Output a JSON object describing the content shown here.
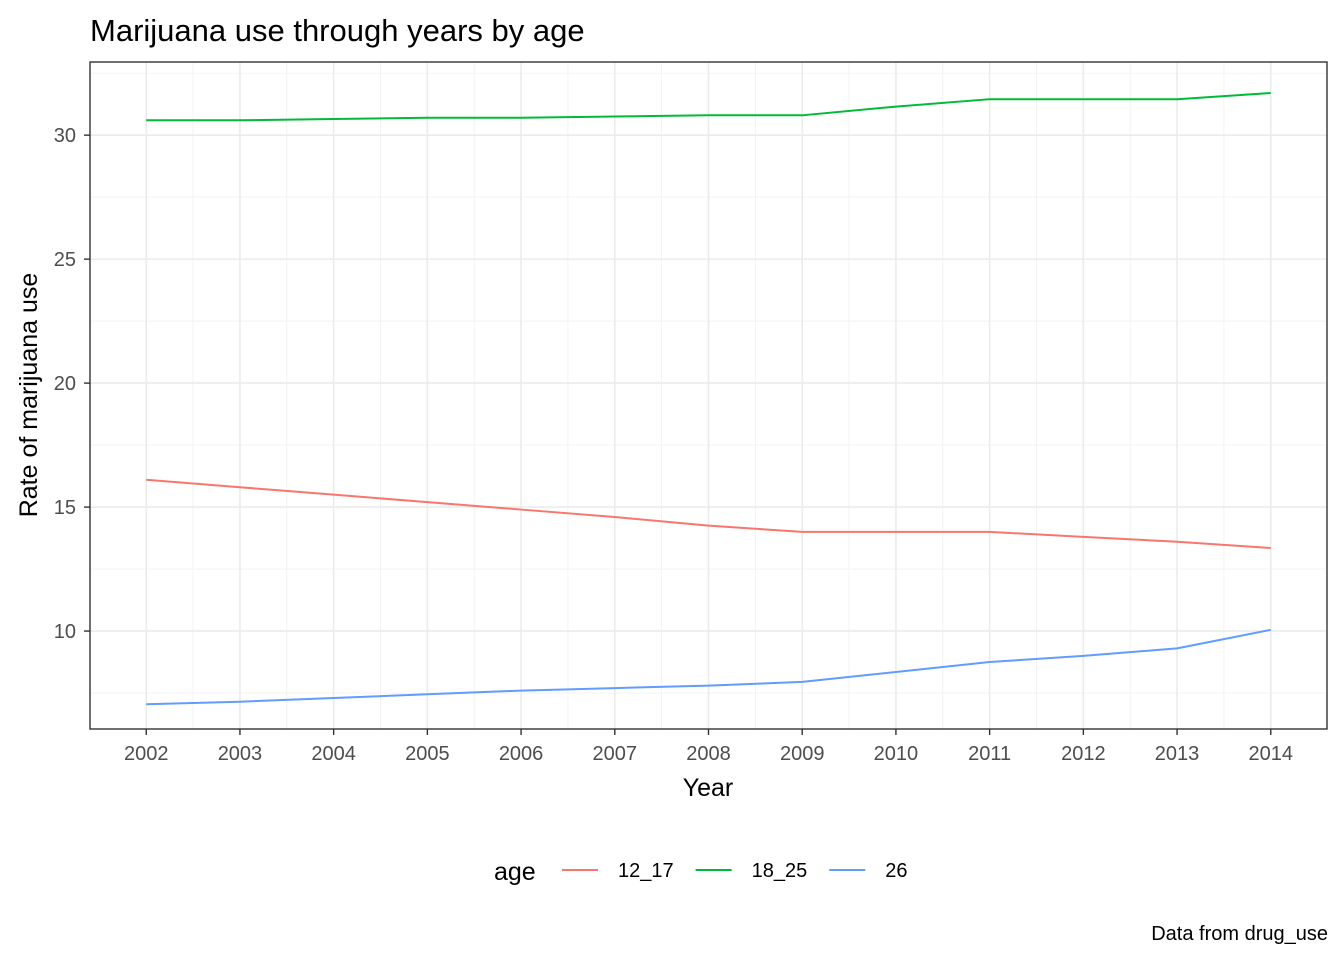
{
  "chart_data": {
    "type": "line",
    "title": "Marijuana use through years by age",
    "xlabel": "Year",
    "ylabel": "Rate of marijuana use",
    "caption": "Data from drug_use",
    "x": [
      2002,
      2003,
      2004,
      2005,
      2006,
      2007,
      2008,
      2009,
      2010,
      2011,
      2012,
      2013,
      2014
    ],
    "x_tick_labels": [
      "2002",
      "2003",
      "2004",
      "2005",
      "2006",
      "2007",
      "2008",
      "2009",
      "2010",
      "2011",
      "2012",
      "2013",
      "2014"
    ],
    "y_ticks": [
      10,
      15,
      20,
      25,
      30
    ],
    "y_tick_labels": [
      "10",
      "15",
      "20",
      "25",
      "30"
    ],
    "xlim": [
      2001.4,
      2014.6
    ],
    "ylim": [
      6.05,
      32.95
    ],
    "grid": true,
    "legend": {
      "title": "age",
      "position": "bottom"
    },
    "series": [
      {
        "name": "12_17",
        "color": "#F8766D",
        "values": [
          16.1,
          15.8,
          15.5,
          15.2,
          14.9,
          14.6,
          14.25,
          14.0,
          14.0,
          14.0,
          13.8,
          13.6,
          13.35
        ]
      },
      {
        "name": "18_25",
        "color": "#00BA38",
        "values": [
          30.6,
          30.6,
          30.65,
          30.7,
          30.7,
          30.75,
          30.8,
          30.8,
          31.15,
          31.45,
          31.45,
          31.45,
          31.7
        ]
      },
      {
        "name": "26",
        "color": "#619CFF",
        "values": [
          7.05,
          7.15,
          7.3,
          7.45,
          7.6,
          7.7,
          7.8,
          7.95,
          8.35,
          8.75,
          9.0,
          9.3,
          10.05
        ]
      }
    ]
  }
}
